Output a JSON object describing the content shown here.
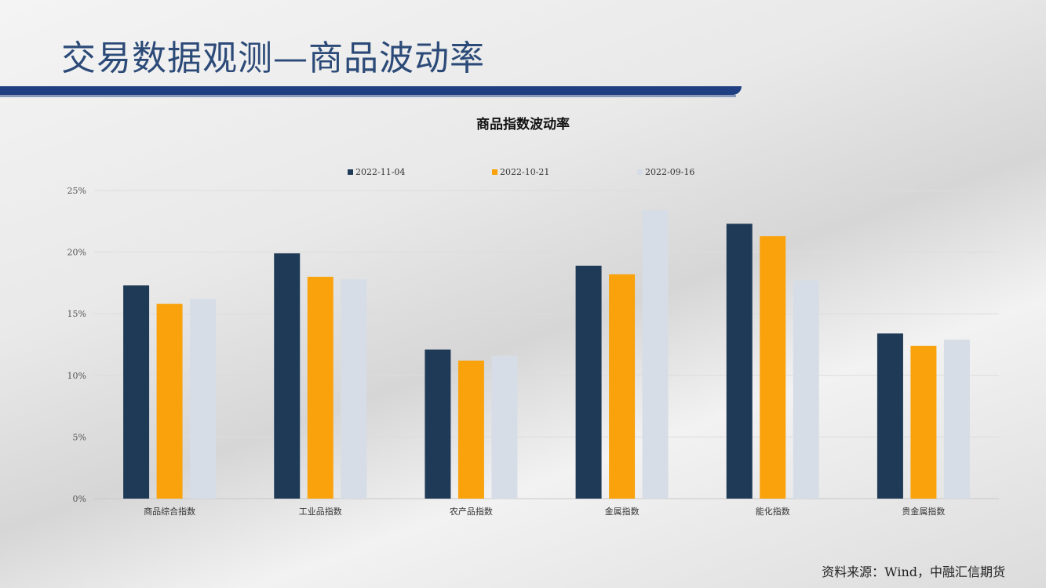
{
  "page": {
    "title": "交易数据观测—商品波动率",
    "source": "资料来源：Wind，中融汇信期货"
  },
  "chart_data": {
    "type": "bar",
    "title": "商品指数波动率",
    "categories": [
      "商品综合指数",
      "工业品指数",
      "农产品指数",
      "金属指数",
      "能化指数",
      "贵金属指数"
    ],
    "series": [
      {
        "name": "2022-11-04",
        "color": "#1f3a56",
        "values": [
          17.3,
          19.9,
          12.1,
          18.9,
          22.3,
          13.4
        ]
      },
      {
        "name": "2022-10-21",
        "color": "#f9a20c",
        "values": [
          15.8,
          18.0,
          11.2,
          18.2,
          21.3,
          12.4
        ]
      },
      {
        "name": "2022-09-16",
        "color": "#d6dde6",
        "values": [
          16.2,
          17.8,
          11.6,
          23.4,
          17.7,
          12.9
        ]
      }
    ],
    "yticks": [
      "0%",
      "5%",
      "10%",
      "15%",
      "20%",
      "25%"
    ],
    "ylim": [
      0,
      25
    ],
    "ylabel": "",
    "xlabel": "",
    "grid": true,
    "legend_position": "top"
  }
}
